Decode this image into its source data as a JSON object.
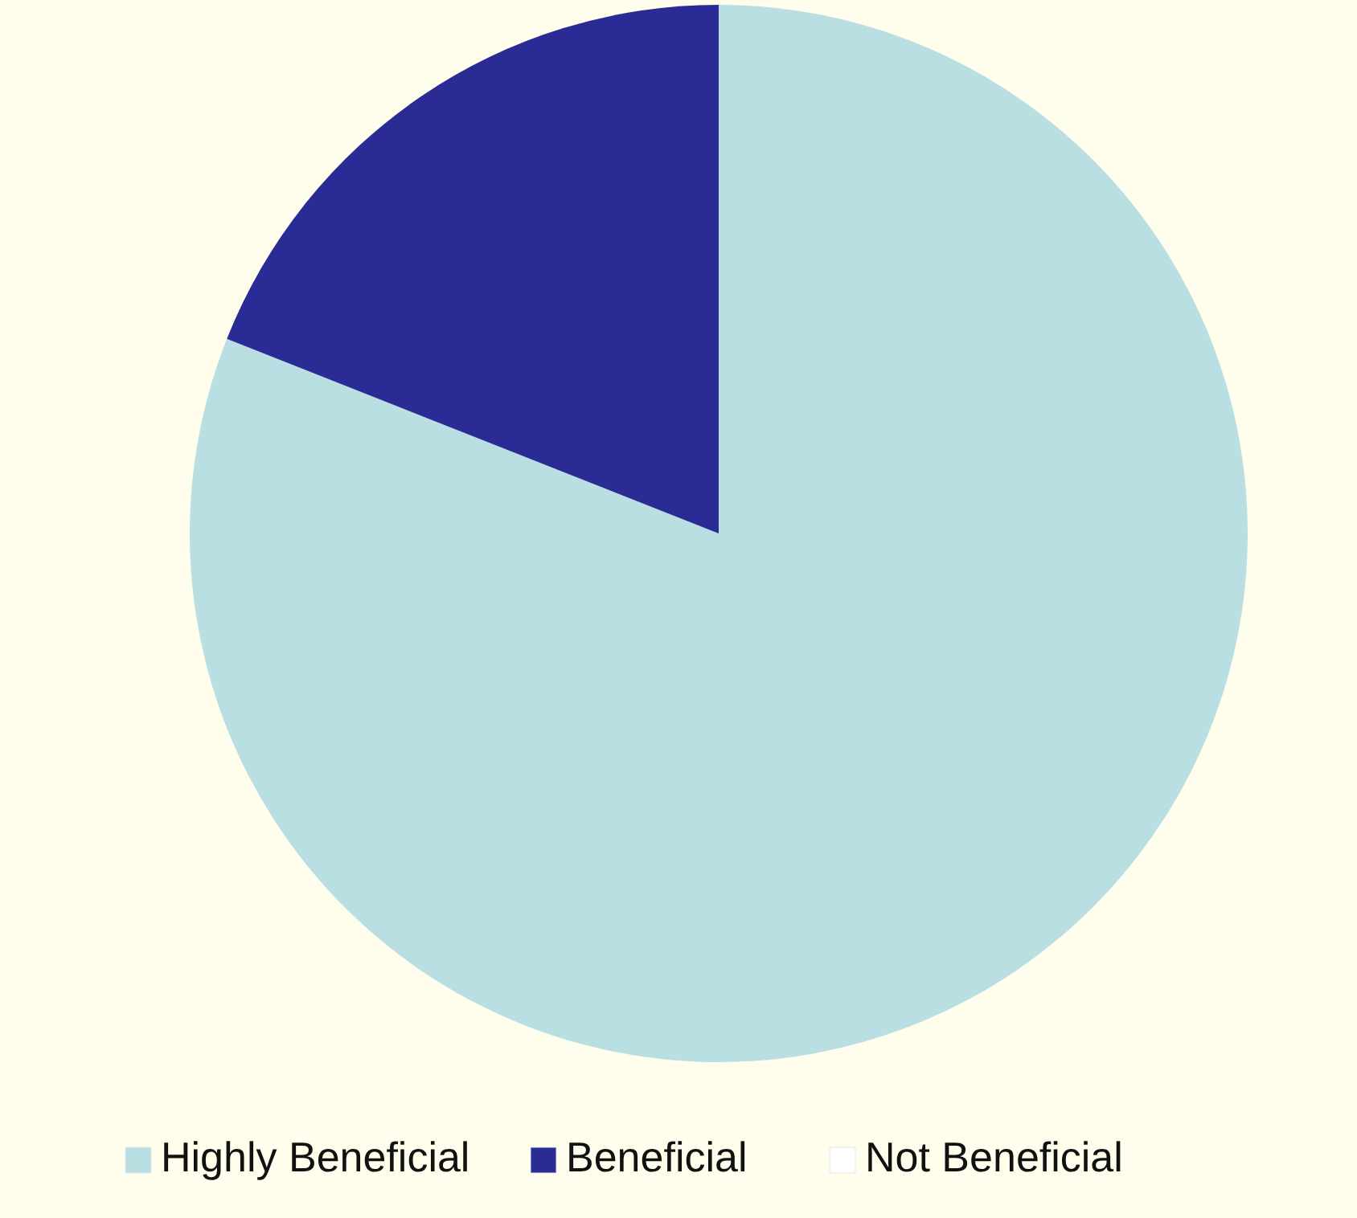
{
  "chart_data": {
    "type": "pie",
    "categories": [
      "Highly Beneficial",
      "Beneficial",
      "Not Beneficial"
    ],
    "values": [
      81,
      19,
      0
    ],
    "colors": [
      "#b9dfe2",
      "#2b2b95",
      "#ffffff"
    ],
    "legend": "bottom"
  }
}
